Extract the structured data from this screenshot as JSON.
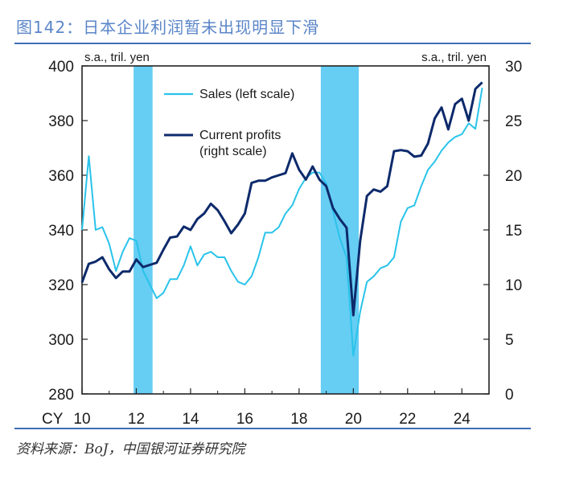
{
  "figure": {
    "title": "图142：日本企业利润暂未出现明显下滑",
    "source": "资料来源：BoJ，中国银河证券研究院"
  },
  "chart_data": {
    "type": "line",
    "left_unit": "s.a., tril. yen",
    "right_unit": "s.a., tril. yen",
    "x_prefix": "CY",
    "x_tick_labels": [
      "10",
      "12",
      "14",
      "16",
      "18",
      "20",
      "22",
      "24"
    ],
    "x_ticks": [
      2010,
      2012,
      2014,
      2016,
      2018,
      2020,
      2022,
      2024
    ],
    "xlim": [
      2010.0,
      2025.0
    ],
    "ylim_left": [
      280,
      400
    ],
    "ylim_right": [
      0,
      30
    ],
    "yticks_left": [
      280,
      300,
      320,
      340,
      360,
      380,
      400
    ],
    "yticks_right": [
      0,
      5,
      10,
      15,
      20,
      25,
      30
    ],
    "shaded_periods": [
      [
        2011.9,
        2012.6
      ],
      [
        2018.8,
        2020.2
      ]
    ],
    "colors": {
      "sales": "#29c3ea",
      "profits": "#0d2a6b",
      "shade": "#66cdf3"
    },
    "series": [
      {
        "name": "Sales (left scale)",
        "axis": "left",
        "x": [
          2010.0,
          2010.25,
          2010.5,
          2010.75,
          2011.0,
          2011.25,
          2011.5,
          2011.75,
          2012.0,
          2012.25,
          2012.5,
          2012.75,
          2013.0,
          2013.25,
          2013.5,
          2013.75,
          2014.0,
          2014.25,
          2014.5,
          2014.75,
          2015.0,
          2015.25,
          2015.5,
          2015.75,
          2016.0,
          2016.25,
          2016.5,
          2016.75,
          2017.0,
          2017.25,
          2017.5,
          2017.75,
          2018.0,
          2018.25,
          2018.5,
          2018.75,
          2019.0,
          2019.25,
          2019.5,
          2019.75,
          2020.0,
          2020.25,
          2020.5,
          2020.75,
          2021.0,
          2021.25,
          2021.5,
          2021.75,
          2022.0,
          2022.25,
          2022.5,
          2022.75,
          2023.0,
          2023.25,
          2023.5,
          2023.75,
          2024.0,
          2024.25,
          2024.5,
          2024.75
        ],
        "values": [
          340,
          367,
          340,
          341,
          335,
          325,
          332,
          337,
          336,
          325,
          320,
          315,
          317,
          322,
          322,
          327,
          334,
          327,
          331,
          332,
          330,
          330,
          325,
          321,
          320,
          323,
          330,
          339,
          339,
          341,
          346,
          349,
          355,
          359,
          361,
          361,
          357,
          347,
          337,
          330,
          294,
          310,
          321,
          323,
          326,
          327,
          330,
          343,
          348,
          349,
          356,
          362,
          365,
          369,
          372,
          374,
          375,
          379,
          377,
          392
        ]
      },
      {
        "name": "Current profits (right scale)",
        "axis": "right",
        "x": [
          2010.0,
          2010.25,
          2010.5,
          2010.75,
          2011.0,
          2011.25,
          2011.5,
          2011.75,
          2012.0,
          2012.25,
          2012.5,
          2012.75,
          2013.0,
          2013.25,
          2013.5,
          2013.75,
          2014.0,
          2014.25,
          2014.5,
          2014.75,
          2015.0,
          2015.25,
          2015.5,
          2015.75,
          2016.0,
          2016.25,
          2016.5,
          2016.75,
          2017.0,
          2017.25,
          2017.5,
          2017.75,
          2018.0,
          2018.25,
          2018.5,
          2018.75,
          2019.0,
          2019.25,
          2019.5,
          2019.75,
          2020.0,
          2020.25,
          2020.5,
          2020.75,
          2021.0,
          2021.25,
          2021.5,
          2021.75,
          2022.0,
          2022.25,
          2022.5,
          2022.75,
          2023.0,
          2023.25,
          2023.5,
          2023.75,
          2024.0,
          2024.25,
          2024.5,
          2024.75
        ],
        "values": [
          10.2,
          11.9,
          12.1,
          12.5,
          11.4,
          10.6,
          11.2,
          11.2,
          12.3,
          11.6,
          11.8,
          12.0,
          13.2,
          14.3,
          14.4,
          15.3,
          15.0,
          16.0,
          16.5,
          17.4,
          16.8,
          15.8,
          14.7,
          15.5,
          16.5,
          19.3,
          19.5,
          19.5,
          19.8,
          20.0,
          20.2,
          22.0,
          20.5,
          19.6,
          20.8,
          19.6,
          19.0,
          17.0,
          16.0,
          15.2,
          7.2,
          14.0,
          18.1,
          18.7,
          18.5,
          19.0,
          22.2,
          22.3,
          22.2,
          21.7,
          21.8,
          22.9,
          25.2,
          26.2,
          24.2,
          26.5,
          27.0,
          25.0,
          27.9,
          28.5
        ]
      }
    ],
    "legend": [
      {
        "label": "Sales (left scale)",
        "series": 0
      },
      {
        "label_lines": [
          "Current profits",
          "(right scale)"
        ],
        "series": 1
      }
    ]
  }
}
